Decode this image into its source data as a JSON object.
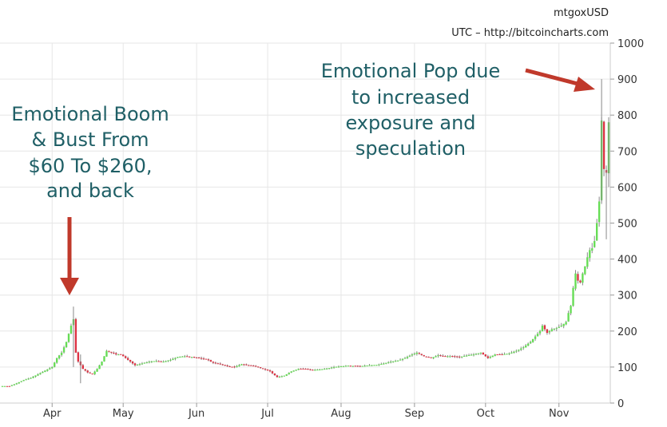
{
  "chart_data": {
    "type": "candlestick",
    "symbol": "mtgoxUSD",
    "source": "UTC – http://bitcoincharts.com",
    "ylim": [
      0,
      1000
    ],
    "yticks": [
      "0",
      "100",
      "200",
      "300",
      "400",
      "500",
      "600",
      "700",
      "800",
      "900",
      "1000"
    ],
    "xticks": [
      "Apr",
      "May",
      "Jun",
      "Jul",
      "Aug",
      "Sep",
      "Oct",
      "Nov"
    ],
    "x_start": "2013-03-11",
    "x_end": "2013-11-22",
    "up_color": "#66dd55",
    "down_color": "#dd3344",
    "wick_color": "#888888",
    "close_series": [
      [
        "2013-03-11",
        47
      ],
      [
        "2013-03-14",
        47
      ],
      [
        "2013-03-17",
        55
      ],
      [
        "2013-03-20",
        64
      ],
      [
        "2013-03-23",
        70
      ],
      [
        "2013-03-26",
        80
      ],
      [
        "2013-03-29",
        90
      ],
      [
        "2013-04-01",
        100
      ],
      [
        "2013-04-03",
        125
      ],
      [
        "2013-04-05",
        140
      ],
      [
        "2013-04-07",
        170
      ],
      [
        "2013-04-09",
        215
      ],
      [
        "2013-04-10",
        233
      ],
      [
        "2013-04-11",
        140
      ],
      [
        "2013-04-12",
        115
      ],
      [
        "2013-04-14",
        95
      ],
      [
        "2013-04-16",
        85
      ],
      [
        "2013-04-18",
        80
      ],
      [
        "2013-04-20",
        95
      ],
      [
        "2013-04-22",
        115
      ],
      [
        "2013-04-24",
        145
      ],
      [
        "2013-04-26",
        140
      ],
      [
        "2013-04-28",
        135
      ],
      [
        "2013-04-30",
        135
      ],
      [
        "2013-05-03",
        120
      ],
      [
        "2013-05-06",
        105
      ],
      [
        "2013-05-09",
        110
      ],
      [
        "2013-05-12",
        115
      ],
      [
        "2013-05-15",
        117
      ],
      [
        "2013-05-18",
        115
      ],
      [
        "2013-05-21",
        120
      ],
      [
        "2013-05-24",
        128
      ],
      [
        "2013-05-27",
        130
      ],
      [
        "2013-05-30",
        128
      ],
      [
        "2013-06-02",
        125
      ],
      [
        "2013-06-05",
        122
      ],
      [
        "2013-06-08",
        112
      ],
      [
        "2013-06-11",
        108
      ],
      [
        "2013-06-14",
        102
      ],
      [
        "2013-06-17",
        100
      ],
      [
        "2013-06-20",
        108
      ],
      [
        "2013-06-23",
        105
      ],
      [
        "2013-06-26",
        102
      ],
      [
        "2013-06-29",
        95
      ],
      [
        "2013-07-02",
        88
      ],
      [
        "2013-07-05",
        72
      ],
      [
        "2013-07-08",
        76
      ],
      [
        "2013-07-11",
        88
      ],
      [
        "2013-07-14",
        95
      ],
      [
        "2013-07-17",
        95
      ],
      [
        "2013-07-20",
        92
      ],
      [
        "2013-07-23",
        93
      ],
      [
        "2013-07-26",
        96
      ],
      [
        "2013-07-29",
        100
      ],
      [
        "2013-08-01",
        102
      ],
      [
        "2013-08-04",
        104
      ],
      [
        "2013-08-07",
        103
      ],
      [
        "2013-08-10",
        103
      ],
      [
        "2013-08-13",
        105
      ],
      [
        "2013-08-16",
        106
      ],
      [
        "2013-08-19",
        110
      ],
      [
        "2013-08-22",
        115
      ],
      [
        "2013-08-25",
        118
      ],
      [
        "2013-08-28",
        125
      ],
      [
        "2013-08-31",
        135
      ],
      [
        "2013-09-02",
        140
      ],
      [
        "2013-09-05",
        130
      ],
      [
        "2013-09-08",
        125
      ],
      [
        "2013-09-11",
        133
      ],
      [
        "2013-09-14",
        130
      ],
      [
        "2013-09-17",
        130
      ],
      [
        "2013-09-20",
        128
      ],
      [
        "2013-09-23",
        132
      ],
      [
        "2013-09-26",
        135
      ],
      [
        "2013-09-29",
        140
      ],
      [
        "2013-10-02",
        125
      ],
      [
        "2013-10-05",
        135
      ],
      [
        "2013-10-08",
        135
      ],
      [
        "2013-10-11",
        138
      ],
      [
        "2013-10-14",
        145
      ],
      [
        "2013-10-17",
        155
      ],
      [
        "2013-10-20",
        170
      ],
      [
        "2013-10-22",
        185
      ],
      [
        "2013-10-24",
        200
      ],
      [
        "2013-10-25",
        215
      ],
      [
        "2013-10-27",
        195
      ],
      [
        "2013-10-29",
        205
      ],
      [
        "2013-10-31",
        208
      ],
      [
        "2013-11-02",
        215
      ],
      [
        "2013-11-04",
        225
      ],
      [
        "2013-11-05",
        250
      ],
      [
        "2013-11-06",
        270
      ],
      [
        "2013-11-07",
        320
      ],
      [
        "2013-11-08",
        360
      ],
      [
        "2013-11-09",
        340
      ],
      [
        "2013-11-10",
        335
      ],
      [
        "2013-11-11",
        360
      ],
      [
        "2013-11-12",
        380
      ],
      [
        "2013-11-13",
        405
      ],
      [
        "2013-11-14",
        425
      ],
      [
        "2013-11-15",
        430
      ],
      [
        "2013-11-16",
        450
      ],
      [
        "2013-11-17",
        500
      ],
      [
        "2013-11-18",
        560
      ],
      [
        "2013-11-19",
        785
      ],
      [
        "2013-11-20",
        650
      ],
      [
        "2013-11-21",
        640
      ],
      [
        "2013-11-22",
        780
      ]
    ],
    "annotations": [
      {
        "lines": [
          "Emotional Boom",
          "& Bust From",
          "$60 To $260,",
          "and back"
        ],
        "arrow_target": {
          "date": "2013-04-10",
          "value": 260
        }
      },
      {
        "lines": [
          "Emotional Pop due",
          "to increased",
          "exposure and",
          "speculation"
        ],
        "arrow_target": {
          "date": "2013-11-19",
          "value": 880
        }
      }
    ]
  }
}
